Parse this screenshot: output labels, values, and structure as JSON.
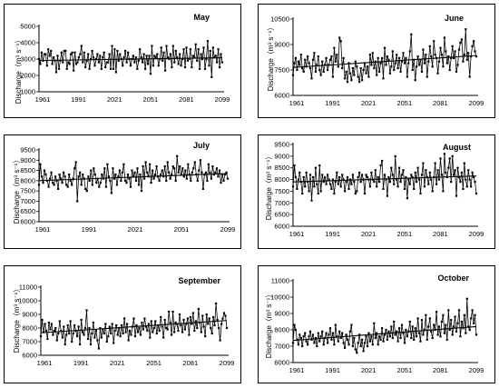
{
  "figure": {
    "background": "#ffffff",
    "line_color": "#000000",
    "marker_color": "#000000",
    "trend_color": "#000000"
  },
  "chart_data": [
    {
      "id": "may",
      "type": "line",
      "title": "May",
      "ylabel": "Discharge（m³ s⁻¹）",
      "ylim": [
        1000,
        5000
      ],
      "yticks": [
        1000,
        2000,
        3000,
        4000,
        5000
      ],
      "xlim": [
        1961,
        2099
      ],
      "xtick_labels": [
        "1961",
        "1991",
        "2021",
        "2051",
        "2081",
        "2099"
      ],
      "trend": [
        2910,
        3080
      ],
      "series": [
        {
          "x_start": 1961,
          "x_step": 1,
          "values": [
            3000,
            2700,
            3400,
            2900,
            3300,
            3300,
            2600,
            3600,
            3200,
            3500,
            2700,
            3100,
            2900,
            2200,
            3200,
            2400,
            2900,
            3400,
            2800,
            3500,
            3500,
            2400,
            2800,
            2700,
            3300,
            3400,
            2300,
            3400,
            2700,
            2800,
            3100,
            3300,
            3800,
            2800,
            3400,
            2500,
            2900,
            3300,
            2400,
            3000,
            3500,
            3100,
            2600,
            3000,
            3300,
            2800,
            3200,
            2400,
            3100,
            3400,
            2500,
            2800,
            2800,
            3300,
            2400,
            3800,
            2400,
            3600,
            2200,
            3500,
            2900,
            3300,
            3000,
            2600,
            3100,
            3500,
            2800,
            3400,
            3000,
            2600,
            3000,
            3200,
            2800,
            3100,
            2400,
            2900,
            3600,
            3100,
            2800,
            3300,
            2400,
            3200,
            2700,
            3200,
            2100,
            3800,
            2600,
            3200,
            3100,
            3300,
            2600,
            3000,
            3700,
            2900,
            3400,
            2300,
            3800,
            3100,
            3000,
            3300,
            2500,
            3800,
            2800,
            3500,
            3100,
            2700,
            3300,
            2600,
            3000,
            3600,
            2500,
            3700,
            2900,
            3000,
            3600,
            2500,
            3200,
            3100,
            3900,
            2900,
            3600,
            2400,
            3300,
            3000,
            3700,
            2400,
            3000,
            4100,
            2600,
            3500,
            1900,
            3700,
            3100,
            3200,
            2800,
            3600,
            2500,
            3300,
            2800
          ]
        }
      ]
    },
    {
      "id": "june",
      "type": "line",
      "title": "June",
      "ylabel": "Discharge（m³ s⁻¹）",
      "ylim": [
        6000,
        10500
      ],
      "yticks": [
        6000,
        7500,
        9000,
        10500
      ],
      "xlim": [
        1961,
        2099
      ],
      "xtick_labels": [
        "1961",
        "1991",
        "2021",
        "2051",
        "2081",
        "2099"
      ],
      "trend": [
        7650,
        8350
      ],
      "series": [
        {
          "x_start": 1961,
          "x_step": 1,
          "values": [
            7200,
            7900,
            8200,
            7500,
            8000,
            7800,
            8400,
            7600,
            7400,
            8100,
            7700,
            8300,
            7900,
            7600,
            7000,
            8100,
            8500,
            7400,
            7800,
            8300,
            7500,
            7200,
            8000,
            7400,
            7800,
            8200,
            7500,
            7800,
            8100,
            8300,
            7100,
            8800,
            8000,
            8400,
            7700,
            9400,
            9200,
            7600,
            8200,
            7000,
            7400,
            6800,
            7900,
            7300,
            6900,
            7600,
            7200,
            8000,
            7700,
            7100,
            6800,
            7600,
            6900,
            7500,
            7900,
            7300,
            7700,
            7100,
            8400,
            7800,
            8500,
            7600,
            8000,
            7200,
            8200,
            7400,
            7900,
            8200,
            7000,
            8800,
            7800,
            8300,
            8100,
            7300,
            7700,
            8600,
            7500,
            7900,
            8400,
            7600,
            8200,
            7400,
            8000,
            8500,
            7900,
            8200,
            7100,
            7900,
            8600,
            9600,
            7500,
            8100,
            6900,
            7700,
            8300,
            7800,
            8100,
            7400,
            8700,
            7900,
            8400,
            7100,
            8000,
            8900,
            8300,
            7700,
            9200,
            8400,
            8200,
            7300,
            8000,
            8800,
            8400,
            7700,
            9400,
            8600,
            7900,
            8300,
            7500,
            8200,
            8900,
            8200,
            8600,
            7400,
            7800,
            8700,
            9100,
            9300,
            8000,
            8400,
            9900,
            8100,
            8500,
            7100,
            8300,
            8900,
            9200,
            8600,
            8300
          ]
        }
      ]
    },
    {
      "id": "july",
      "type": "line",
      "title": "July",
      "ylabel": "Discharge（m³ s⁻¹）",
      "ylim": [
        6000,
        9500
      ],
      "yticks": [
        6000,
        6500,
        7000,
        7500,
        8000,
        8500,
        9000,
        9500
      ],
      "xlim": [
        1961,
        2099
      ],
      "xtick_labels": [
        "1961",
        "1991",
        "2021",
        "2051",
        "2099"
      ],
      "trend": [
        8000,
        8350
      ],
      "series": [
        {
          "x_start": 1961,
          "x_step": 1,
          "values": [
            7800,
            8800,
            8200,
            7900,
            8500,
            8300,
            8000,
            7700,
            8100,
            8400,
            7900,
            7800,
            8200,
            8000,
            7600,
            8300,
            8100,
            7900,
            8400,
            8200,
            7800,
            7700,
            8300,
            8000,
            7800,
            8100,
            8600,
            8900,
            7000,
            8200,
            8400,
            7800,
            8300,
            8100,
            7600,
            7500,
            8200,
            8000,
            8500,
            7800,
            8600,
            8300,
            7900,
            8100,
            7700,
            7900,
            8300,
            8100,
            8600,
            7700,
            8800,
            8200,
            8000,
            7400,
            8600,
            8100,
            8300,
            7800,
            8200,
            8500,
            8000,
            8400,
            8800,
            8000,
            7900,
            8300,
            8100,
            7700,
            8500,
            8200,
            8400,
            8000,
            8600,
            7800,
            8300,
            7500,
            8700,
            8100,
            8900,
            8400,
            8200,
            8800,
            7900,
            8500,
            8100,
            8300,
            8700,
            8200,
            8000,
            8300,
            8500,
            8200,
            8700,
            8000,
            8900,
            8400,
            8100,
            8300,
            8700,
            8600,
            8000,
            9200,
            8400,
            8700,
            8300,
            8600,
            8200,
            8500,
            8100,
            8800,
            8300,
            8000,
            8400,
            8600,
            8900,
            8300,
            8000,
            8500,
            9000,
            8400,
            7600,
            8300,
            8400,
            8000,
            8800,
            8400,
            8100,
            8700,
            8300,
            8400,
            8600,
            8200,
            8500,
            7900,
            8300,
            8000,
            8300,
            8400,
            8100
          ]
        }
      ]
    },
    {
      "id": "august",
      "type": "line",
      "title": "August",
      "ylabel": "Discharge（m³ s⁻¹）",
      "ylim": [
        6000,
        9500
      ],
      "yticks": [
        6000,
        6500,
        7000,
        7500,
        8000,
        8500,
        9000,
        9500
      ],
      "xlim": [
        1961,
        2099
      ],
      "xtick_labels": [
        "1961",
        "1991",
        "2021",
        "2051",
        "2081",
        "2099"
      ],
      "trend": [
        7900,
        8150
      ],
      "series": [
        {
          "x_start": 1961,
          "x_step": 1,
          "values": [
            7700,
            8600,
            8100,
            7600,
            8000,
            8300,
            7900,
            7400,
            8100,
            7700,
            8300,
            7900,
            7500,
            8200,
            7100,
            8100,
            7700,
            8500,
            7800,
            7400,
            8600,
            7500,
            8200,
            7900,
            8100,
            7800,
            8200,
            8000,
            7800,
            7600,
            8000,
            7400,
            7900,
            8300,
            7800,
            8100,
            7700,
            8200,
            8000,
            7500,
            7900,
            8100,
            7600,
            8000,
            7800,
            8200,
            7900,
            7400,
            7500,
            8100,
            8300,
            7900,
            8200,
            8000,
            7400,
            8200,
            8100,
            8000,
            7700,
            8300,
            8000,
            7900,
            8400,
            7700,
            8100,
            7900,
            8600,
            8800,
            7600,
            8200,
            8000,
            7300,
            8100,
            7900,
            8500,
            8200,
            7800,
            9000,
            8000,
            7700,
            8500,
            7900,
            8200,
            8400,
            7600,
            8100,
            7200,
            8000,
            7800,
            8200,
            8100,
            7600,
            8300,
            7900,
            8500,
            8000,
            7400,
            8200,
            8700,
            7700,
            8400,
            8100,
            7800,
            8300,
            8000,
            7500,
            8100,
            8700,
            7800,
            8400,
            8000,
            8900,
            8200,
            7500,
            9100,
            8300,
            8100,
            8500,
            8900,
            7900,
            9000,
            8200,
            8400,
            7300,
            8500,
            8100,
            7900,
            8300,
            7600,
            8700,
            8000,
            7700,
            8400,
            8000,
            7700,
            8300,
            8100,
            7900,
            7400
          ]
        }
      ]
    },
    {
      "id": "september",
      "type": "line",
      "title": "September",
      "ylabel": "Discharge（m³ s⁻¹）",
      "ylim": [
        6000,
        11000
      ],
      "yticks": [
        6000,
        7000,
        8000,
        9000,
        10000,
        11000
      ],
      "xlim": [
        1961,
        2099
      ],
      "xtick_labels": [
        "1961",
        "1991",
        "2021",
        "2051",
        "2081",
        "2099"
      ],
      "trend": [
        7650,
        8550
      ],
      "series": [
        {
          "x_start": 1961,
          "x_step": 1,
          "values": [
            7400,
            8600,
            7700,
            8300,
            7800,
            7200,
            8400,
            7900,
            8300,
            7500,
            7800,
            8000,
            7100,
            7600,
            8500,
            7800,
            7300,
            8100,
            6800,
            7500,
            8200,
            7600,
            8500,
            7000,
            7600,
            8200,
            7800,
            7400,
            8100,
            6800,
            8600,
            7700,
            7500,
            8000,
            9300,
            7200,
            8000,
            6800,
            7600,
            8400,
            7300,
            7800,
            7100,
            6500,
            8000,
            7300,
            7900,
            7600,
            8300,
            7000,
            7400,
            8100,
            7600,
            8300,
            6900,
            7800,
            8200,
            7500,
            8000,
            7400,
            8200,
            7600,
            8700,
            7700,
            8300,
            7100,
            7800,
            7500,
            8100,
            8700,
            7400,
            8200,
            7700,
            8000,
            7500,
            8400,
            7900,
            8700,
            8100,
            7800,
            8300,
            7300,
            8500,
            7700,
            8000,
            8500,
            7600,
            8200,
            7800,
            8800,
            8100,
            7300,
            8600,
            8000,
            7900,
            9200,
            8400,
            7500,
            9200,
            7700,
            8400,
            8300,
            7800,
            9000,
            8200,
            7700,
            8600,
            7900,
            8300,
            8700,
            7500,
            8800,
            8300,
            9100,
            7800,
            8500,
            8000,
            9400,
            8400,
            7700,
            8900,
            8100,
            7400,
            9000,
            8300,
            8700,
            8000,
            7600,
            8800,
            8200,
            9800,
            8600,
            8000,
            7100,
            8300,
            8700,
            9100,
            8900,
            8000
          ]
        }
      ]
    },
    {
      "id": "october",
      "type": "line",
      "title": "October",
      "ylabel": "Discharge（m³ s⁻¹）",
      "ylim": [
        6000,
        11000
      ],
      "yticks": [
        6000,
        7000,
        8000,
        9000,
        10000,
        11000
      ],
      "xlim": [
        1961,
        2099
      ],
      "xtick_labels": [
        "1961",
        "1991",
        "2021",
        "2051",
        "2081",
        "2099"
      ],
      "trend": [
        7350,
        8200
      ],
      "series": [
        {
          "x_start": 1961,
          "x_step": 1,
          "values": [
            7200,
            8300,
            8000,
            7400,
            7100,
            7700,
            7500,
            7000,
            7600,
            7800,
            7300,
            7100,
            7600,
            7900,
            7400,
            7700,
            7200,
            7500,
            7000,
            7800,
            7300,
            7600,
            7900,
            7100,
            7500,
            7800,
            7200,
            7700,
            8100,
            7400,
            7800,
            7100,
            8300,
            7600,
            7300,
            7900,
            7500,
            7800,
            7200,
            6900,
            7700,
            7400,
            7100,
            7900,
            8300,
            7000,
            7500,
            6800,
            6600,
            7200,
            7700,
            7000,
            7400,
            6700,
            7200,
            7600,
            7000,
            7800,
            7300,
            7600,
            7100,
            8400,
            7500,
            7800,
            7100,
            7600,
            7400,
            8100,
            7300,
            7700,
            8000,
            7400,
            7900,
            7600,
            8200,
            7500,
            8500,
            7700,
            7900,
            7300,
            8100,
            7500,
            8300,
            7800,
            7200,
            8000,
            7600,
            7900,
            8500,
            7500,
            8200,
            7400,
            8100,
            7600,
            8700,
            7800,
            7300,
            8600,
            7700,
            8000,
            8900,
            7400,
            8200,
            8700,
            7900,
            7500,
            8300,
            8000,
            9100,
            7700,
            8200,
            7600,
            8500,
            8900,
            7800,
            8300,
            7400,
            9200,
            8000,
            8600,
            7700,
            8200,
            8800,
            7900,
            8400,
            9200,
            7600,
            8500,
            8100,
            8900,
            7800,
            9900,
            8200,
            8000,
            8700,
            9200,
            8400,
            8900,
            7700
          ]
        }
      ]
    }
  ]
}
